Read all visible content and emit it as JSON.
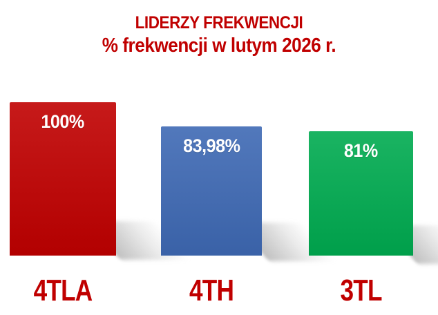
{
  "chart_data": {
    "type": "bar",
    "title": "LIDERZY FREKWENCJI",
    "subtitle": "% frekwencji w lutym 2026 r.",
    "categories": [
      "4TLA",
      "4TH",
      "3TL"
    ],
    "values": [
      100,
      83.98,
      81
    ],
    "value_labels": [
      "100%",
      "83,98%",
      "81%"
    ],
    "unit": "%",
    "ylim": [
      0,
      100
    ],
    "grid": false,
    "legend": false,
    "axes_visible": false,
    "bar_colors": [
      "#c00000",
      "#3e69b4",
      "#00ab50"
    ],
    "value_label_color": "#ffffff",
    "category_label_color": "#c00000",
    "title_color": "#c00000",
    "background_color": "#ffffff"
  }
}
